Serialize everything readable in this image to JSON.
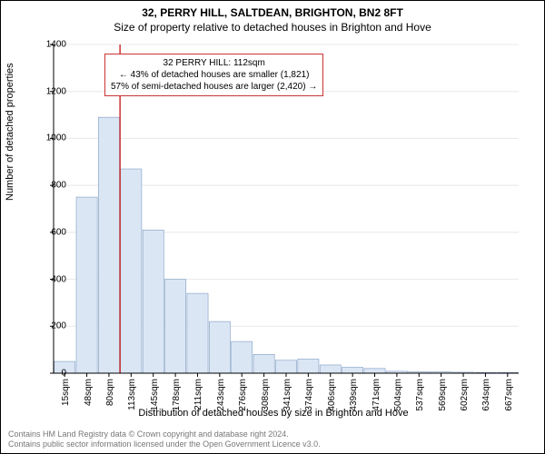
{
  "titles": {
    "main": "32, PERRY HILL, SALTDEAN, BRIGHTON, BN2 8FT",
    "sub": "Size of property relative to detached houses in Brighton and Hove"
  },
  "chart": {
    "type": "histogram",
    "y_label": "Number of detached properties",
    "x_label": "Distribution of detached houses by size in Brighton and Hove",
    "ylim": [
      0,
      1400
    ],
    "ytick_step": 200,
    "y_ticks": [
      0,
      200,
      400,
      600,
      800,
      1000,
      1200,
      1400
    ],
    "x_categories": [
      "15sqm",
      "48sqm",
      "80sqm",
      "113sqm",
      "145sqm",
      "178sqm",
      "211sqm",
      "243sqm",
      "276sqm",
      "308sqm",
      "341sqm",
      "374sqm",
      "406sqm",
      "439sqm",
      "471sqm",
      "504sqm",
      "537sqm",
      "569sqm",
      "602sqm",
      "634sqm",
      "667sqm"
    ],
    "values": [
      50,
      750,
      1090,
      870,
      610,
      400,
      340,
      220,
      135,
      80,
      55,
      60,
      35,
      25,
      20,
      8,
      6,
      6,
      4,
      3,
      3
    ],
    "bar_fill": "#dbe6f5",
    "bar_stroke": "#7d9cc0",
    "axis_color": "#000000",
    "grid_color": "#e8e8e8",
    "background_color": "#ffffff",
    "marker_line_x_index": 3,
    "marker_line_color": "#cc3333",
    "title_fontsize": 12,
    "label_fontsize": 11,
    "tick_fontsize": 10,
    "bar_width_ratio": 0.95
  },
  "callout": {
    "line1": "32 PERRY HILL: 112sqm",
    "line2": "← 43% of detached houses are smaller (1,821)",
    "line3": "57% of semi-detached houses are larger (2,420) →",
    "border_color": "#cc3333",
    "fontsize": 10
  },
  "footer": {
    "line1": "Contains HM Land Registry data © Crown copyright and database right 2024.",
    "line2": "Contains public sector information licensed under the Open Government Licence v3.0.",
    "color": "#777777",
    "fontsize": 9
  }
}
